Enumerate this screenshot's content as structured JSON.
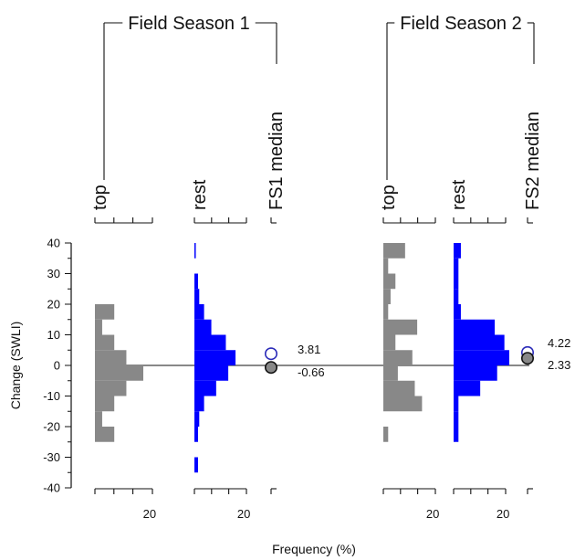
{
  "chart_data": {
    "type": "histogram",
    "xlabel": "Frequency (%)",
    "ylabel": "Change (SWLI)",
    "ylim": [
      -40,
      40
    ],
    "yticks": [
      40,
      30,
      20,
      10,
      0,
      -10,
      -20,
      -30,
      -40
    ],
    "freq_tick_label": "20",
    "groups": [
      {
        "name": "Field Season 1",
        "panels": [
          {
            "name": "top",
            "color": "#888888",
            "bins": [
              {
                "lo": 15,
                "hi": 20,
                "value": 8
              },
              {
                "lo": 10,
                "hi": 15,
                "value": 3
              },
              {
                "lo": 5,
                "hi": 10,
                "value": 8
              },
              {
                "lo": 0,
                "hi": 5,
                "value": 13
              },
              {
                "lo": -5,
                "hi": 0,
                "value": 20
              },
              {
                "lo": -10,
                "hi": -5,
                "value": 13
              },
              {
                "lo": -15,
                "hi": -10,
                "value": 8
              },
              {
                "lo": -20,
                "hi": -15,
                "value": 3
              },
              {
                "lo": -25,
                "hi": -20,
                "value": 8
              }
            ]
          },
          {
            "name": "rest",
            "color": "#0000ff",
            "bins": [
              {
                "lo": 35,
                "hi": 40,
                "value": 0.5
              },
              {
                "lo": 25,
                "hi": 30,
                "value": 1.5
              },
              {
                "lo": 20,
                "hi": 25,
                "value": 2
              },
              {
                "lo": 15,
                "hi": 20,
                "value": 4
              },
              {
                "lo": 10,
                "hi": 15,
                "value": 7
              },
              {
                "lo": 5,
                "hi": 10,
                "value": 13
              },
              {
                "lo": 0,
                "hi": 5,
                "value": 17
              },
              {
                "lo": -5,
                "hi": 0,
                "value": 14
              },
              {
                "lo": -10,
                "hi": -5,
                "value": 9
              },
              {
                "lo": -15,
                "hi": -10,
                "value": 4
              },
              {
                "lo": -20,
                "hi": -15,
                "value": 2
              },
              {
                "lo": -25,
                "hi": -20,
                "value": 1.5
              },
              {
                "lo": -35,
                "hi": -30,
                "value": 1.5
              }
            ]
          }
        ],
        "median_panel": "FS1 median",
        "medians": [
          {
            "label": "3.81",
            "value": 3.81,
            "series": "rest"
          },
          {
            "label": "-0.66",
            "value": -0.66,
            "series": "top"
          }
        ]
      },
      {
        "name": "Field Season 2",
        "panels": [
          {
            "name": "top",
            "color": "#888888",
            "bins": [
              {
                "lo": 35,
                "hi": 40,
                "value": 9
              },
              {
                "lo": 30,
                "hi": 35,
                "value": 2
              },
              {
                "lo": 25,
                "hi": 30,
                "value": 5
              },
              {
                "lo": 20,
                "hi": 25,
                "value": 3
              },
              {
                "lo": 15,
                "hi": 20,
                "value": 2
              },
              {
                "lo": 10,
                "hi": 15,
                "value": 14
              },
              {
                "lo": 5,
                "hi": 10,
                "value": 5
              },
              {
                "lo": 0,
                "hi": 5,
                "value": 12
              },
              {
                "lo": -5,
                "hi": 0,
                "value": 6
              },
              {
                "lo": -10,
                "hi": -5,
                "value": 13
              },
              {
                "lo": -15,
                "hi": -10,
                "value": 16
              },
              {
                "lo": -25,
                "hi": -20,
                "value": 2
              }
            ]
          },
          {
            "name": "rest",
            "color": "#0000ff",
            "bins": [
              {
                "lo": 35,
                "hi": 40,
                "value": 3
              },
              {
                "lo": 30,
                "hi": 35,
                "value": 2
              },
              {
                "lo": 25,
                "hi": 30,
                "value": 2
              },
              {
                "lo": 20,
                "hi": 25,
                "value": 2
              },
              {
                "lo": 15,
                "hi": 20,
                "value": 3
              },
              {
                "lo": 10,
                "hi": 15,
                "value": 17
              },
              {
                "lo": 5,
                "hi": 10,
                "value": 21
              },
              {
                "lo": 0,
                "hi": 5,
                "value": 23
              },
              {
                "lo": -5,
                "hi": 0,
                "value": 18
              },
              {
                "lo": -10,
                "hi": -5,
                "value": 11
              },
              {
                "lo": -15,
                "hi": -10,
                "value": 2
              },
              {
                "lo": -20,
                "hi": -15,
                "value": 2
              },
              {
                "lo": -25,
                "hi": -20,
                "value": 2
              }
            ]
          }
        ],
        "median_panel": "FS2 median",
        "medians": [
          {
            "label": "4.22",
            "value": 4.22,
            "series": "rest"
          },
          {
            "label": "2.33",
            "value": 2.33,
            "series": "top"
          }
        ]
      }
    ]
  }
}
